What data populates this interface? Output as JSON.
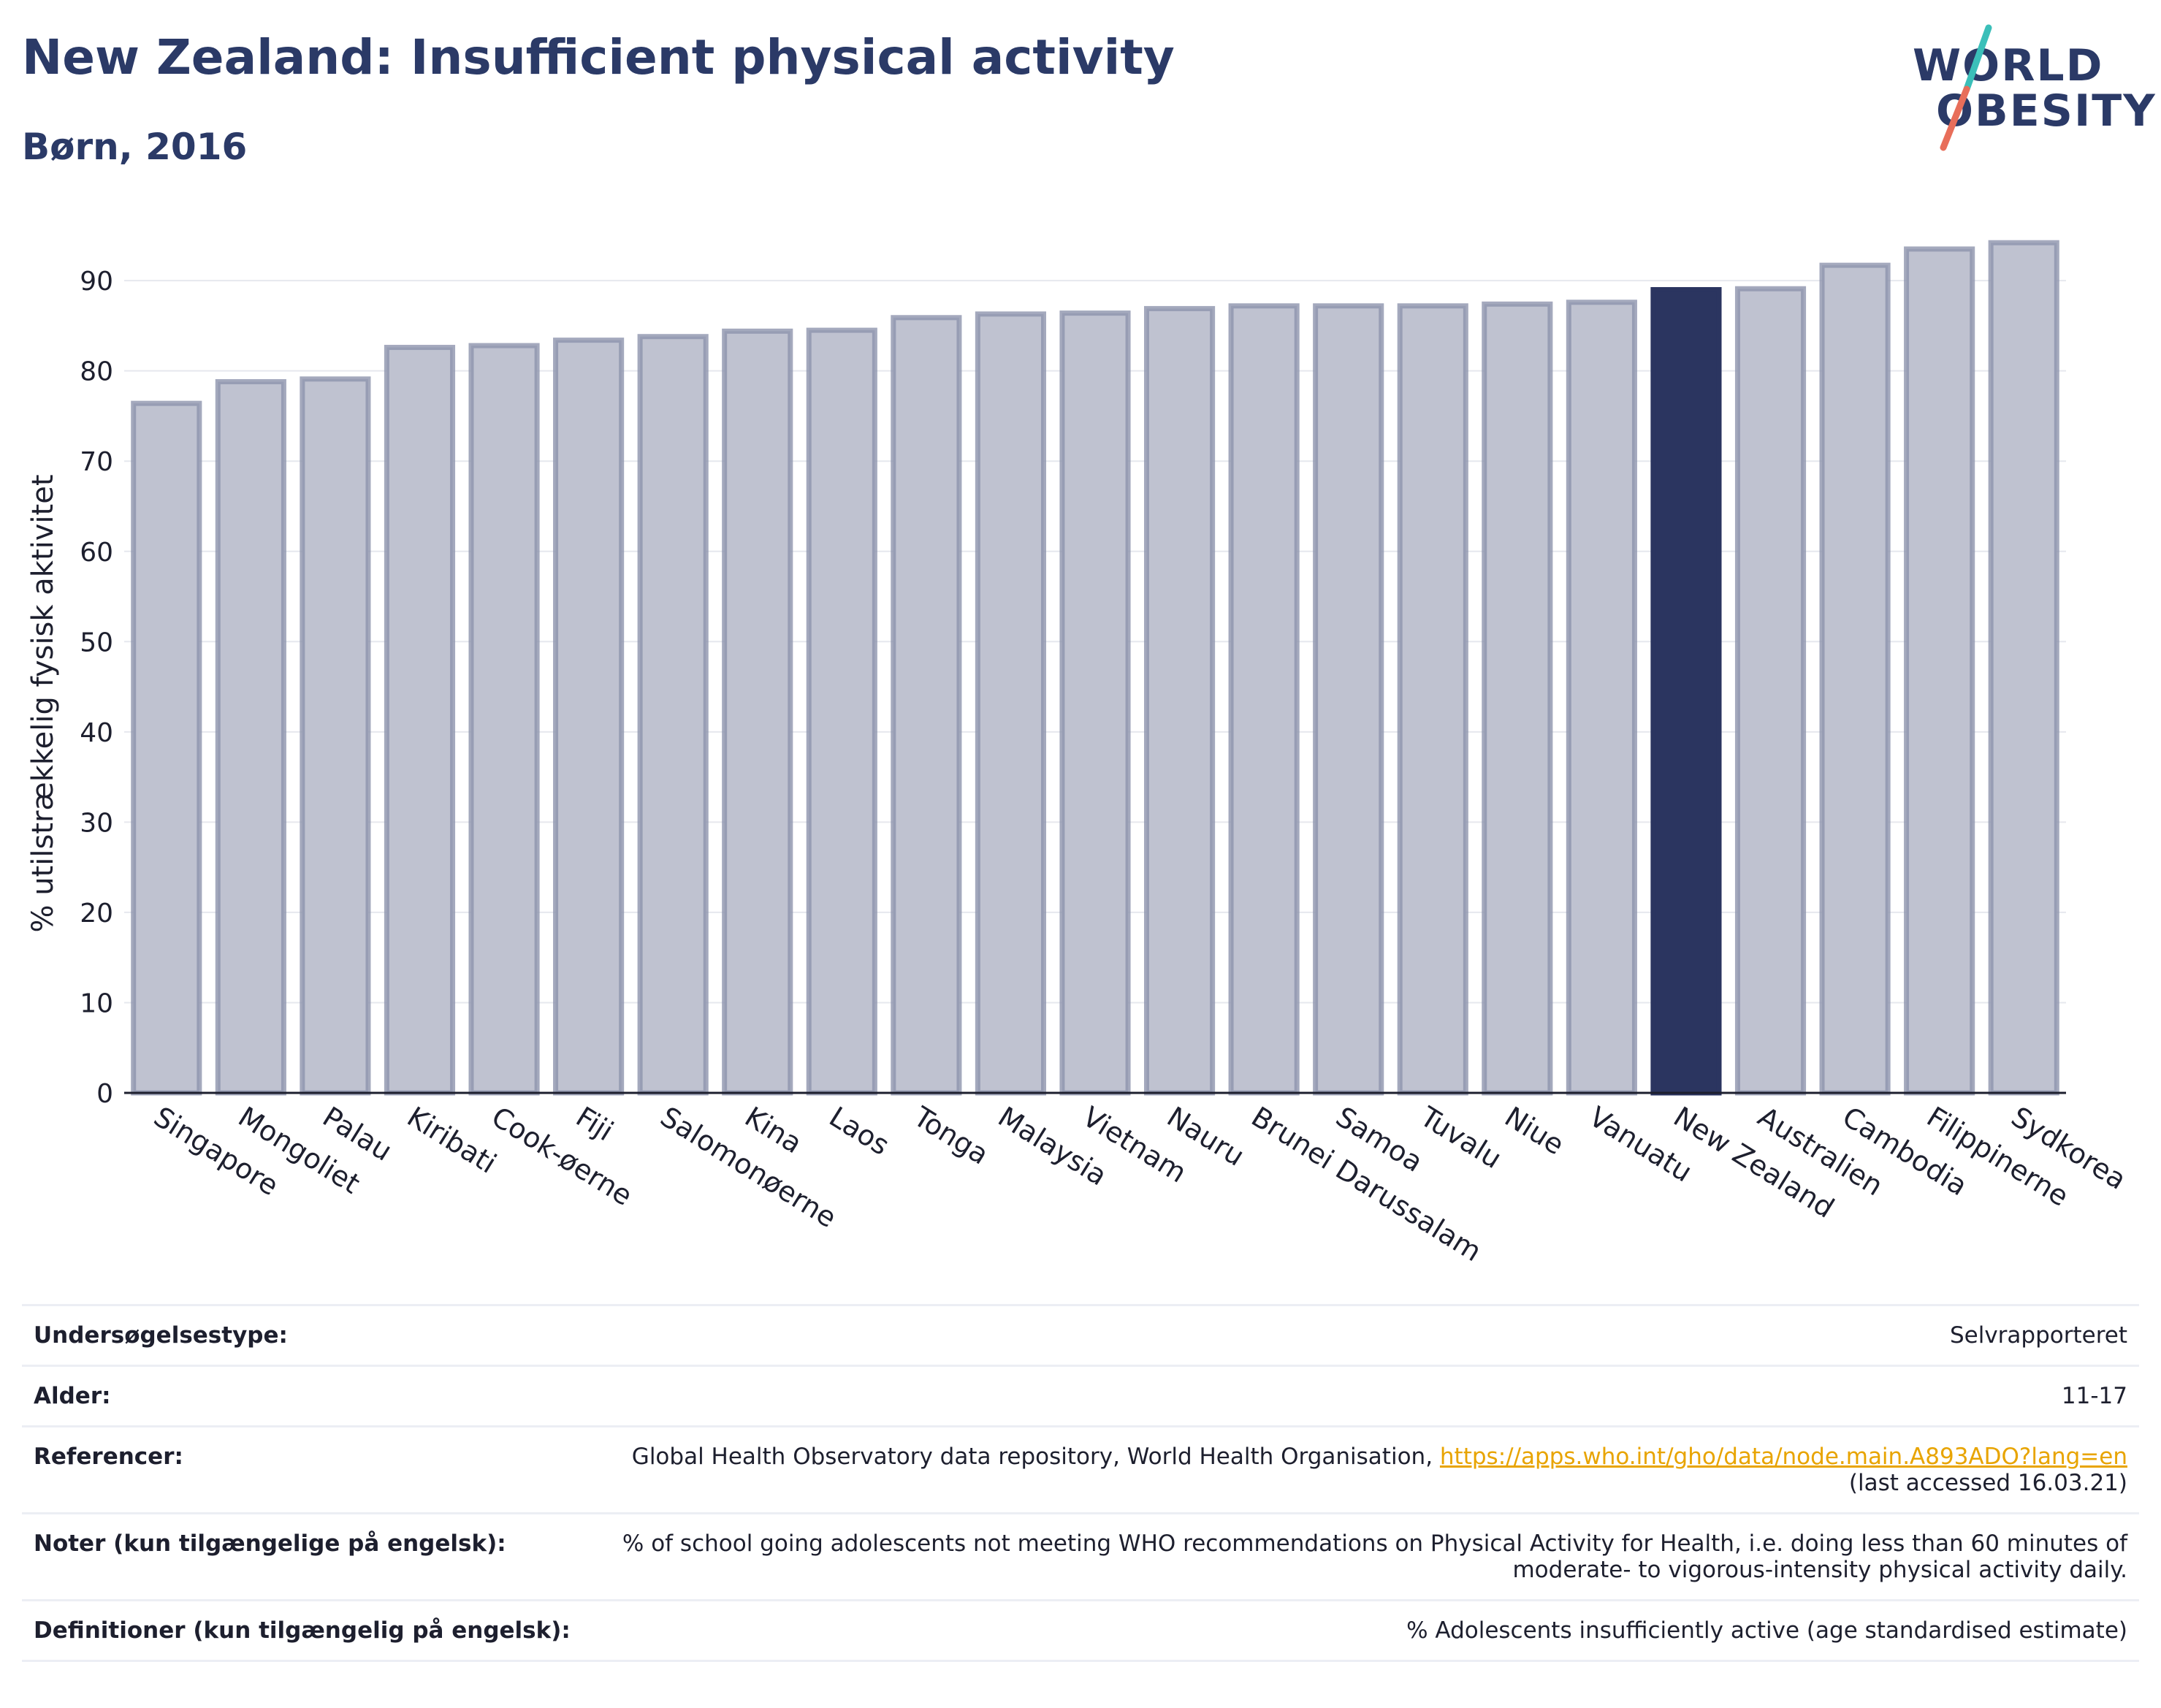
{
  "header": {
    "title": "New Zealand: Insufficient physical activity",
    "subtitle": "Børn, 2016"
  },
  "logo": {
    "line1": "WORLD",
    "line2": "OBESITY"
  },
  "colors": {
    "bar": "#bfc2d0",
    "bar_edge": "#8d93ac",
    "highlight": "#2b3560",
    "title": "#2b3a67",
    "link": "#e8a400"
  },
  "chart_data": {
    "type": "bar",
    "title": "New Zealand: Insufficient physical activity",
    "subtitle": "Børn, 2016",
    "xlabel": "",
    "ylabel": "% utilstrækkelig fysisk aktivitet",
    "ylim": [
      0,
      96
    ],
    "yticks": [
      0,
      10,
      20,
      30,
      40,
      50,
      60,
      70,
      80,
      90
    ],
    "grid": true,
    "highlight": "New Zealand",
    "categories": [
      "Singapore",
      "Mongoliet",
      "Palau",
      "Kiribati",
      "Cook-øerne",
      "Fiji",
      "Salomonøerne",
      "Kina",
      "Laos",
      "Tonga",
      "Malaysia",
      "Vietnam",
      "Nauru",
      "Brunei Darussalam",
      "Samoa",
      "Tuvalu",
      "Niue",
      "Vanuatu",
      "New Zealand",
      "Australien",
      "Cambodia",
      "Filippinerne",
      "Sydkorea"
    ],
    "values": [
      76.4,
      78.8,
      79.1,
      82.6,
      82.8,
      83.4,
      83.8,
      84.4,
      84.5,
      85.9,
      86.3,
      86.4,
      86.9,
      87.2,
      87.2,
      87.2,
      87.4,
      87.6,
      89.0,
      89.1,
      91.7,
      93.5,
      94.2
    ]
  },
  "info": {
    "survey_type_label": "Undersøgelsestype:",
    "survey_type_value": "Selvrapporteret",
    "age_label": "Alder:",
    "age_value": "11-17",
    "references_label": "Referencer:",
    "references_text": "Global Health Observatory data repository, World Health Organisation, ",
    "references_link": "https://apps.who.int/gho/data/node.main.A893ADO?lang=en",
    "references_accessed": "(last accessed 16.03.21)",
    "notes_label": "Noter (kun tilgængelige på engelsk):",
    "notes_line1": "% of school going adolescents not meeting WHO recommendations on Physical Activity for Health, i.e. doing less than 60 minutes of",
    "notes_line2": "moderate- to vigorous-intensity physical activity daily.",
    "definitions_label": "Definitioner (kun tilgængelig på engelsk):",
    "definitions_value": "% Adolescents insufficiently active (age standardised estimate)"
  }
}
